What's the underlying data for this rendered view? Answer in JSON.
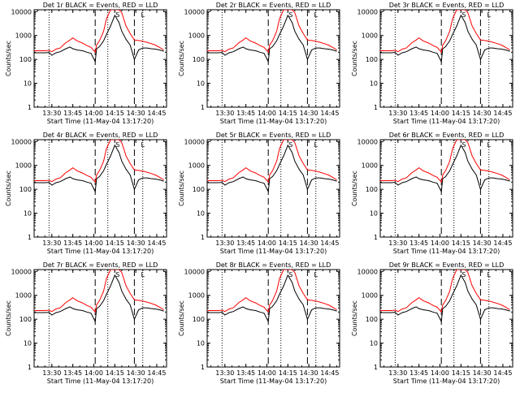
{
  "page": {
    "background": "#ffffff",
    "events_color": "#000000",
    "lld_color": "#ff0000"
  },
  "chart_data": {
    "type": "line",
    "grid": false,
    "yscale": "log",
    "ylim": [
      1,
      12000
    ],
    "xlim": [
      "13:17:20",
      "14:52:00"
    ],
    "ylabel": "Counts/sec",
    "xlabel": "Start Time (11-May-04 13:17:20)",
    "y_ticks": [
      "1",
      "10",
      "100",
      "1000",
      "10000"
    ],
    "x_ticks": [
      "13:30",
      "13:45",
      "14:00",
      "14:15",
      "14:30",
      "14:45"
    ],
    "time_axis": [
      "13:17:20",
      "13:20",
      "13:25",
      "13:28",
      "13:30",
      "13:33",
      "13:36",
      "13:40",
      "13:43",
      "13:45",
      "13:48",
      "13:52",
      "13:55",
      "13:58",
      "14:01",
      "14:02",
      "14:04",
      "14:07",
      "14:09",
      "14:12",
      "14:15",
      "14:18",
      "14:20",
      "14:23",
      "14:26",
      "14:29",
      "14:32",
      "14:35",
      "14:38",
      "14:41",
      "14:44",
      "14:47",
      "14:50"
    ],
    "markers": {
      "dotted": [
        "13:28",
        "14:10",
        "14:35"
      ],
      "dashed": [
        "14:01",
        "14:29"
      ],
      "flags": [
        {
          "label": "S",
          "time": "14:17"
        },
        {
          "label": "L",
          "time": "14:35"
        }
      ]
    },
    "panels": [
      {
        "title": "Det 1r BLACK = Events, RED = LLD",
        "series": [
          {
            "name": "Events",
            "color": "#000000",
            "values": [
              190,
              190,
              190,
              195,
              150,
              190,
              210,
              280,
              330,
              280,
              250,
              230,
              200,
              180,
              80,
              280,
              340,
              600,
              1100,
              2500,
              7000,
              3500,
              1500,
              700,
              400,
              100,
              250,
              300,
              300,
              280,
              270,
              250,
              220
            ]
          },
          {
            "name": "LLD",
            "color": "#ff0000",
            "values": [
              230,
              230,
              230,
              240,
              210,
              270,
              300,
              500,
              650,
              800,
              600,
              480,
              380,
              320,
              200,
              400,
              600,
              1500,
              5000,
              12000,
              12000,
              12000,
              9000,
              2500,
              1200,
              650,
              620,
              580,
              520,
              460,
              400,
              320,
              250
            ]
          }
        ]
      },
      {
        "title": "Det 2r BLACK = Events, RED = LLD",
        "series": [
          {
            "name": "Events",
            "color": "#000000",
            "values": [
              190,
              190,
              190,
              195,
              150,
              190,
              210,
              280,
              330,
              280,
              250,
              230,
              200,
              180,
              80,
              280,
              340,
              600,
              1100,
              2500,
              7000,
              3500,
              1500,
              700,
              400,
              100,
              250,
              300,
              300,
              280,
              270,
              250,
              220
            ]
          },
          {
            "name": "LLD",
            "color": "#ff0000",
            "values": [
              230,
              230,
              230,
              240,
              210,
              270,
              300,
              500,
              650,
              800,
              600,
              480,
              380,
              320,
              200,
              400,
              600,
              1500,
              5000,
              12000,
              12000,
              12000,
              9000,
              2500,
              1200,
              650,
              620,
              580,
              520,
              460,
              400,
              320,
              250
            ]
          }
        ]
      },
      {
        "title": "Det 3r BLACK = Events, RED = LLD",
        "series": [
          {
            "name": "Events",
            "color": "#000000",
            "values": [
              190,
              190,
              190,
              195,
              150,
              190,
              210,
              280,
              330,
              280,
              250,
              230,
              200,
              180,
              80,
              280,
              340,
              600,
              1100,
              2500,
              7000,
              3500,
              1500,
              700,
              400,
              100,
              250,
              300,
              300,
              280,
              270,
              250,
              220
            ]
          },
          {
            "name": "LLD",
            "color": "#ff0000",
            "values": [
              230,
              230,
              230,
              240,
              210,
              270,
              300,
              500,
              650,
              800,
              600,
              480,
              380,
              320,
              200,
              400,
              600,
              1500,
              5000,
              12000,
              12000,
              12000,
              9000,
              2500,
              1200,
              650,
              620,
              580,
              520,
              460,
              400,
              320,
              250
            ]
          }
        ]
      },
      {
        "title": "Det 4r BLACK = Events, RED = LLD",
        "series": [
          {
            "name": "Events",
            "color": "#000000",
            "values": [
              190,
              190,
              190,
              195,
              150,
              190,
              210,
              280,
              330,
              280,
              250,
              230,
              200,
              180,
              80,
              280,
              340,
              600,
              1100,
              2500,
              7000,
              3500,
              1500,
              700,
              400,
              100,
              250,
              300,
              300,
              280,
              270,
              250,
              220
            ]
          },
          {
            "name": "LLD",
            "color": "#ff0000",
            "values": [
              230,
              230,
              230,
              240,
              210,
              270,
              300,
              500,
              650,
              800,
              600,
              480,
              380,
              320,
              200,
              400,
              600,
              1500,
              5000,
              12000,
              12000,
              12000,
              9000,
              2500,
              1200,
              650,
              620,
              580,
              520,
              460,
              400,
              320,
              250
            ]
          }
        ]
      },
      {
        "title": "Det 5r BLACK = Events, RED = LLD",
        "series": [
          {
            "name": "Events",
            "color": "#000000",
            "values": [
              190,
              190,
              190,
              195,
              150,
              190,
              210,
              280,
              330,
              280,
              250,
              230,
              200,
              180,
              80,
              280,
              340,
              600,
              1100,
              2500,
              7000,
              3500,
              1500,
              700,
              400,
              100,
              250,
              300,
              300,
              280,
              270,
              250,
              220
            ]
          },
          {
            "name": "LLD",
            "color": "#ff0000",
            "values": [
              230,
              230,
              230,
              240,
              210,
              270,
              300,
              500,
              650,
              800,
              600,
              480,
              380,
              320,
              200,
              400,
              600,
              1500,
              5000,
              12000,
              12000,
              12000,
              9000,
              2500,
              1200,
              650,
              620,
              580,
              520,
              460,
              400,
              320,
              250
            ]
          }
        ]
      },
      {
        "title": "Det 6r BLACK = Events, RED = LLD",
        "series": [
          {
            "name": "Events",
            "color": "#000000",
            "values": [
              190,
              190,
              190,
              195,
              150,
              190,
              210,
              280,
              330,
              280,
              250,
              230,
              200,
              180,
              80,
              280,
              340,
              600,
              1100,
              2500,
              7000,
              3500,
              1500,
              700,
              400,
              100,
              250,
              300,
              300,
              280,
              270,
              250,
              220
            ]
          },
          {
            "name": "LLD",
            "color": "#ff0000",
            "values": [
              230,
              230,
              230,
              240,
              210,
              270,
              300,
              500,
              650,
              800,
              600,
              480,
              380,
              320,
              200,
              400,
              600,
              1500,
              5000,
              12000,
              12000,
              12000,
              9000,
              2500,
              1200,
              650,
              620,
              580,
              520,
              460,
              400,
              320,
              250
            ]
          }
        ]
      },
      {
        "title": "Det 7r BLACK = Events, RED = LLD",
        "series": [
          {
            "name": "Events",
            "color": "#000000",
            "values": [
              190,
              190,
              190,
              195,
              150,
              190,
              210,
              280,
              330,
              280,
              250,
              230,
              200,
              180,
              80,
              280,
              340,
              600,
              1100,
              2500,
              7000,
              3500,
              1500,
              700,
              400,
              100,
              250,
              300,
              300,
              280,
              270,
              250,
              220
            ]
          },
          {
            "name": "LLD",
            "color": "#ff0000",
            "values": [
              230,
              230,
              230,
              240,
              210,
              270,
              300,
              500,
              650,
              800,
              600,
              480,
              380,
              320,
              200,
              400,
              600,
              1500,
              5000,
              12000,
              12000,
              12000,
              9000,
              2500,
              1200,
              650,
              620,
              580,
              520,
              460,
              400,
              320,
              250
            ]
          }
        ]
      },
      {
        "title": "Det 8r BLACK = Events, RED = LLD",
        "series": [
          {
            "name": "Events",
            "color": "#000000",
            "values": [
              190,
              190,
              190,
              195,
              150,
              190,
              210,
              280,
              330,
              280,
              250,
              230,
              200,
              180,
              80,
              280,
              340,
              600,
              1100,
              2500,
              7000,
              3500,
              1500,
              700,
              400,
              100,
              250,
              300,
              300,
              280,
              270,
              250,
              220
            ]
          },
          {
            "name": "LLD",
            "color": "#ff0000",
            "values": [
              230,
              230,
              230,
              240,
              210,
              270,
              300,
              500,
              650,
              800,
              600,
              480,
              380,
              320,
              200,
              400,
              600,
              1500,
              5000,
              12000,
              12000,
              12000,
              9000,
              2500,
              1200,
              650,
              620,
              580,
              520,
              460,
              400,
              320,
              250
            ]
          }
        ]
      },
      {
        "title": "Det 9r BLACK = Events, RED = LLD",
        "series": [
          {
            "name": "Events",
            "color": "#000000",
            "values": [
              190,
              190,
              190,
              195,
              150,
              190,
              210,
              280,
              330,
              280,
              250,
              230,
              200,
              180,
              80,
              280,
              340,
              600,
              1100,
              2500,
              7000,
              3500,
              1500,
              700,
              400,
              100,
              250,
              300,
              300,
              280,
              270,
              250,
              220
            ]
          },
          {
            "name": "LLD",
            "color": "#ff0000",
            "values": [
              230,
              230,
              230,
              240,
              210,
              270,
              300,
              500,
              650,
              800,
              600,
              480,
              380,
              320,
              200,
              400,
              600,
              1500,
              5000,
              12000,
              12000,
              12000,
              9000,
              2500,
              1200,
              650,
              620,
              580,
              520,
              460,
              400,
              320,
              250
            ]
          }
        ]
      }
    ]
  }
}
